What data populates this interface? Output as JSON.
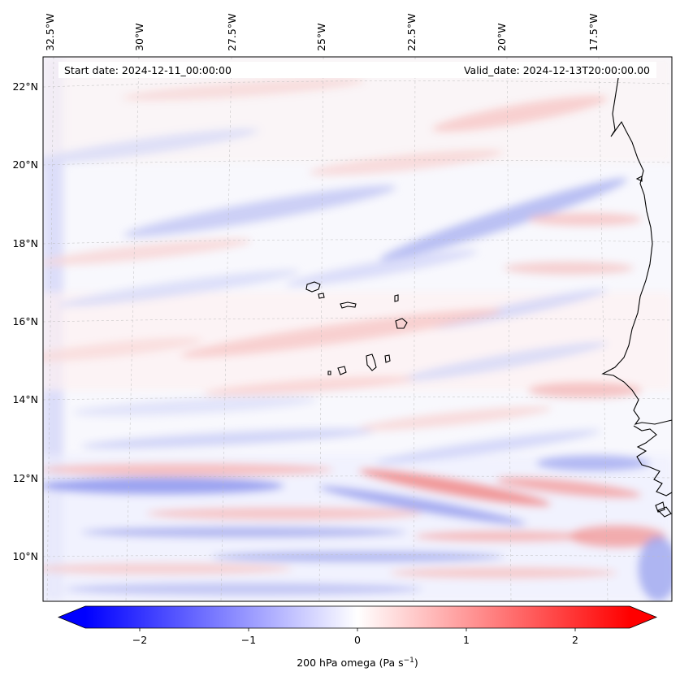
{
  "map": {
    "header": {
      "start_date": "Start date: 2024-12-11_00:00:00",
      "valid_date": "Valid_date: 2024-12-13T20:00:00.00"
    },
    "lon_labels": [
      "32.5°W",
      "30°W",
      "27.5°W",
      "25°W",
      "22.5°W",
      "20°W",
      "17.5°W"
    ],
    "lat_labels": [
      "22°N",
      "20°N",
      "18°N",
      "16°N",
      "14°N",
      "12°N",
      "10°N"
    ],
    "colorbar": {
      "ticks": [
        "−2",
        "−1",
        "0",
        "1",
        "2"
      ],
      "label": "200 hPa omega (Pa s",
      "label_exp": "−1",
      "label_close": ")",
      "min": -2.7,
      "max": 2.7,
      "cmap": "bwr"
    },
    "colors": {
      "negative": "#0000ff",
      "zero": "#ffffff",
      "positive": "#ff0000",
      "coastline": "#000000",
      "gridline": "#bbbbbb"
    }
  }
}
